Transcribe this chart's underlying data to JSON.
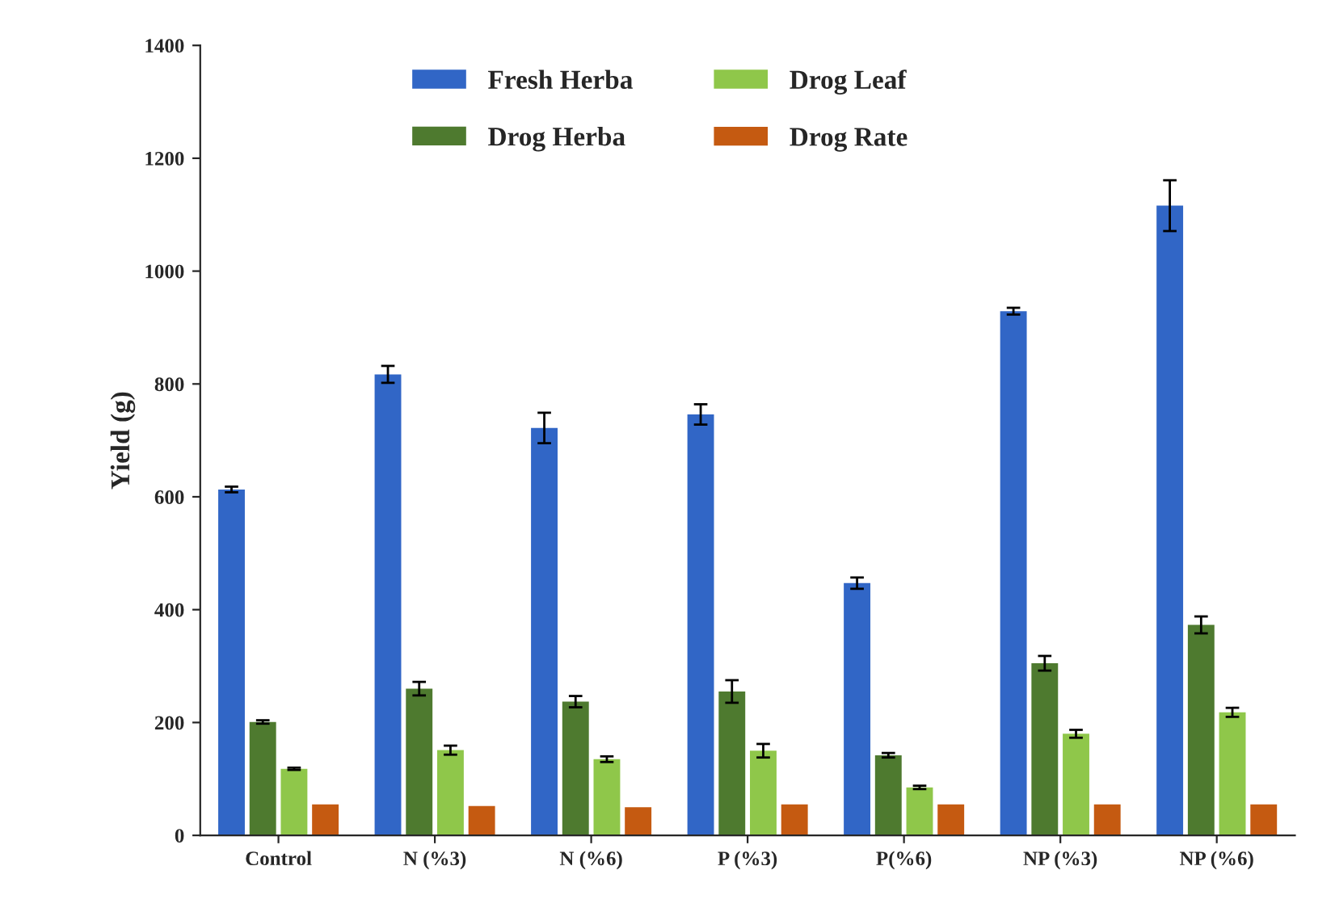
{
  "chart_data": {
    "type": "bar",
    "ylabel": "Yield (g)",
    "categories": [
      "Control",
      "N (%3)",
      "N (%6)",
      "P (%3)",
      "P(%6)",
      "NP (%3)",
      "NP (%6)"
    ],
    "series": [
      {
        "name": "Fresh Herba",
        "color": "#3166c6",
        "values": [
          613,
          817,
          722,
          746,
          447,
          929,
          1116
        ],
        "errors": [
          5,
          15,
          27,
          18,
          10,
          6,
          45
        ]
      },
      {
        "name": "Drog Herba",
        "color": "#4e7a2f",
        "values": [
          201,
          260,
          237,
          255,
          142,
          305,
          373
        ],
        "errors": [
          3,
          12,
          10,
          20,
          4,
          13,
          15
        ]
      },
      {
        "name": "Drog Leaf",
        "color": "#8fc74a",
        "values": [
          118,
          151,
          135,
          150,
          85,
          180,
          218
        ],
        "errors": [
          2,
          8,
          5,
          12,
          3,
          7,
          8
        ]
      },
      {
        "name": "Drog Rate",
        "color": "#c55a11",
        "values": [
          55,
          52,
          50,
          55,
          55,
          55,
          55
        ]
      }
    ],
    "ylim": [
      0,
      1400
    ],
    "yticks": [
      0,
      200,
      400,
      600,
      800,
      1000,
      1200,
      1400
    ],
    "grid": false,
    "legend": "top"
  }
}
